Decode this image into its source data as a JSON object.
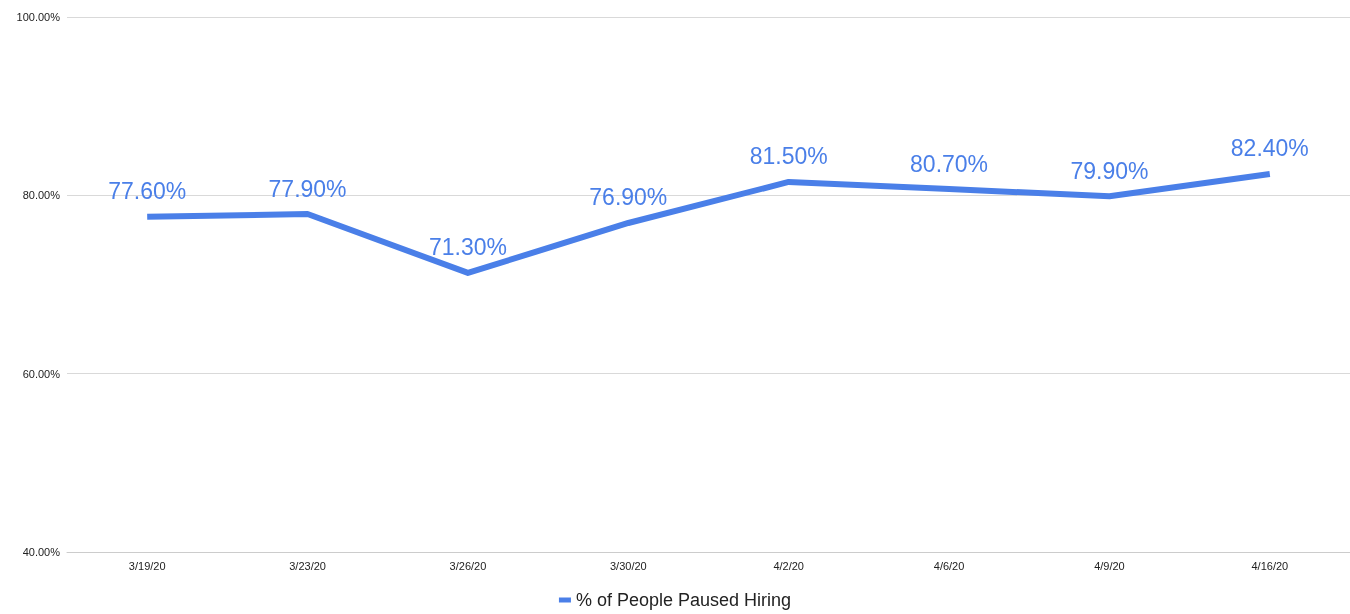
{
  "chart_data": {
    "type": "line",
    "categories": [
      "3/19/20",
      "3/23/20",
      "3/26/20",
      "3/30/20",
      "4/2/20",
      "4/6/20",
      "4/9/20",
      "4/16/20"
    ],
    "series": [
      {
        "name": "% of People Paused Hiring",
        "color": "#4a7fe8",
        "values": [
          77.6,
          77.9,
          71.3,
          76.9,
          81.5,
          80.7,
          79.9,
          82.4
        ],
        "value_labels": [
          "77.60%",
          "77.90%",
          "71.30%",
          "76.90%",
          "81.50%",
          "80.70%",
          "79.90%",
          "82.40%"
        ]
      }
    ],
    "ylim": [
      40,
      100
    ],
    "yticks": [
      {
        "value": 40,
        "label": "40.00%"
      },
      {
        "value": 60,
        "label": "60.00%"
      },
      {
        "value": 80,
        "label": "80.00%"
      },
      {
        "value": 100,
        "label": "100.00%"
      }
    ],
    "grid": "y",
    "legend": "bottom",
    "marker": "none",
    "line_style": "solid"
  }
}
